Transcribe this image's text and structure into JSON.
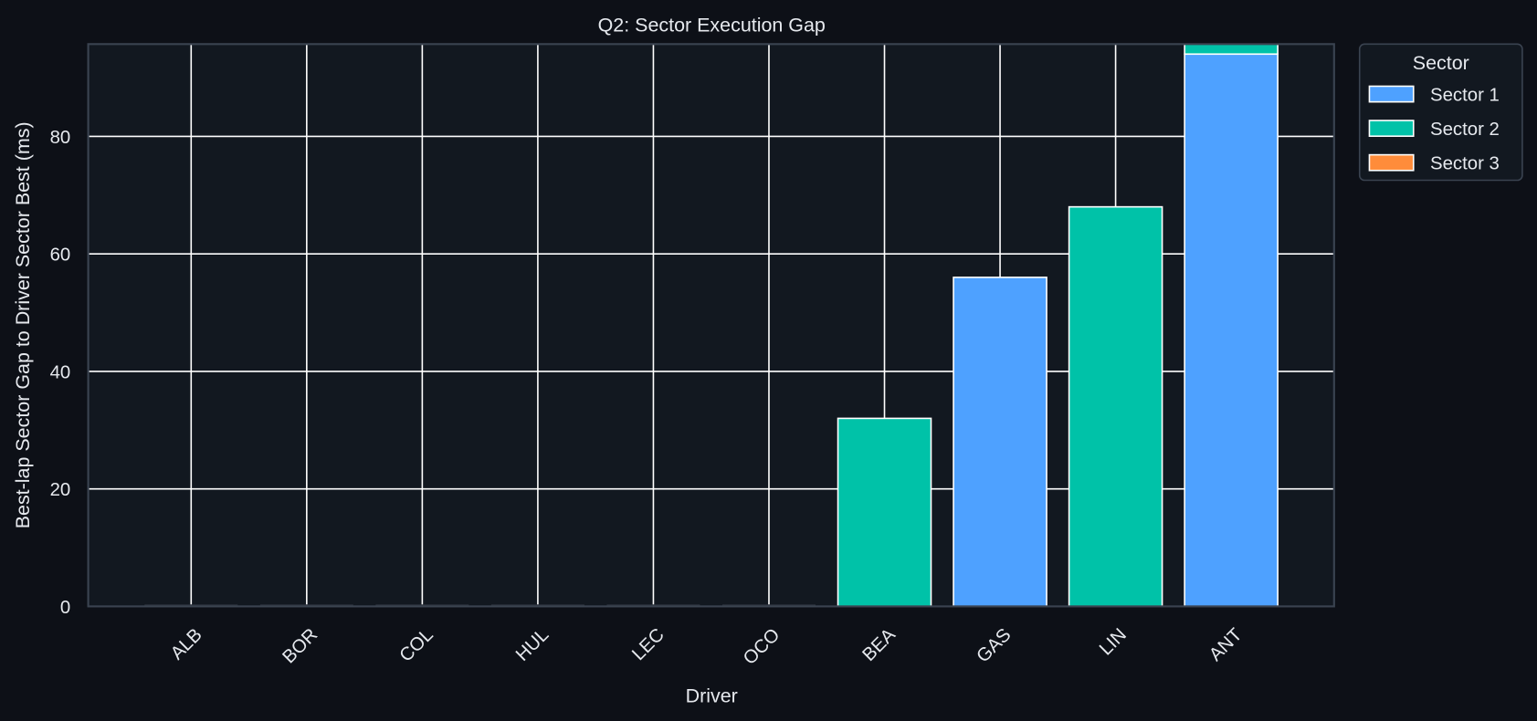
{
  "chart_data": {
    "type": "bar",
    "stacked": true,
    "title": "Q2: Sector Execution Gap",
    "xlabel": "Driver",
    "ylabel": "Best-lap Sector Gap to Driver Sector Best (ms)",
    "categories": [
      "ALB",
      "BOR",
      "COL",
      "HUL",
      "LEC",
      "OCO",
      "BEA",
      "GAS",
      "LIN",
      "ANT"
    ],
    "series": [
      {
        "name": "Sector 1",
        "color": "#4ea1ff",
        "values": [
          0,
          0,
          0,
          0,
          0,
          0,
          0,
          56,
          0,
          94
        ]
      },
      {
        "name": "Sector 2",
        "color": "#00c2a8",
        "values": [
          0,
          0,
          0,
          0,
          0,
          0,
          32,
          0,
          68,
          2
        ]
      },
      {
        "name": "Sector 3",
        "color": "#ff8c3a",
        "values": [
          0,
          0,
          0,
          0,
          0,
          0,
          0,
          0,
          0,
          0
        ]
      }
    ],
    "ylim": [
      0,
      95.7
    ],
    "yticks": [
      0,
      20,
      40,
      60,
      80
    ],
    "grid": true,
    "legend": {
      "title": "Sector",
      "placement": "outside-top-right"
    },
    "colors": {
      "background": "#0d1017",
      "plot_background": "#121820",
      "grid": "#ffffff",
      "spine": "#3a4350"
    }
  }
}
